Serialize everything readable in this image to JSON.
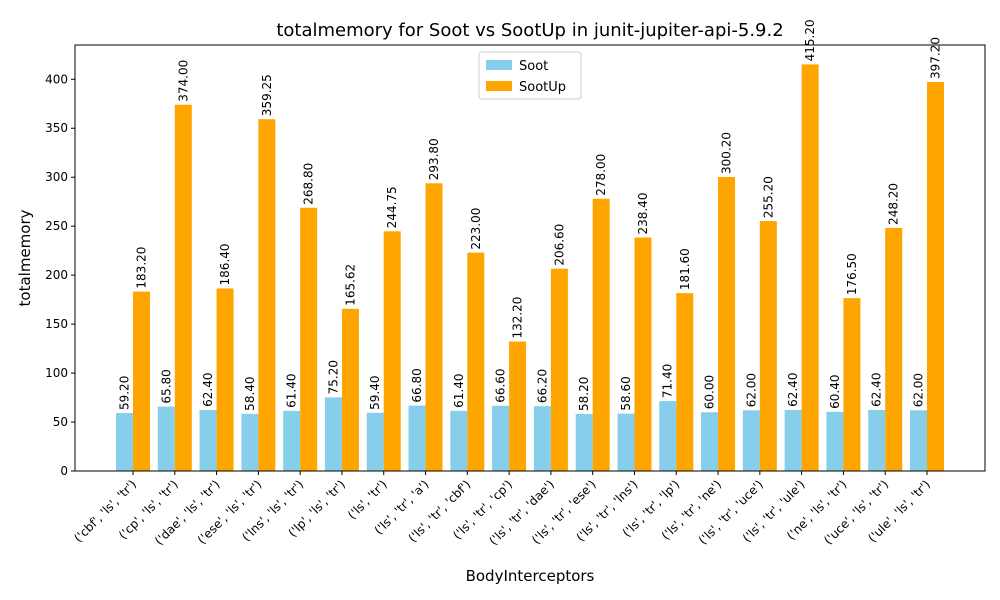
{
  "chart_data": {
    "type": "bar",
    "title": "totalmemory for Soot vs SootUp in junit-jupiter-api-5.9.2",
    "xlabel": "BodyInterceptors",
    "ylabel": "totalmemory",
    "ylim": [
      0,
      435
    ],
    "yticks": [
      0,
      50,
      100,
      150,
      200,
      250,
      300,
      350,
      400
    ],
    "legend_position": "top-center",
    "categories": [
      "('cbf', 'ls', 'tr')",
      "('cp', 'ls', 'tr')",
      "('dae', 'ls', 'tr')",
      "('ese', 'ls', 'tr')",
      "('lns', 'ls', 'tr')",
      "('lp', 'ls', 'tr')",
      "('ls', 'tr')",
      "('ls', 'tr', 'a')",
      "('ls', 'tr', 'cbf')",
      "('ls', 'tr', 'cp')",
      "('ls', 'tr', 'dae')",
      "('ls', 'tr', 'ese')",
      "('ls', 'tr', 'lns')",
      "('ls', 'tr', 'lp')",
      "('ls', 'tr', 'ne')",
      "('ls', 'tr', 'uce')",
      "('ls', 'tr', 'ule')",
      "('ne', 'ls', 'tr')",
      "('uce', 'ls', 'tr')",
      "('ule', 'ls', 'tr')"
    ],
    "series": [
      {
        "name": "Soot",
        "color": "#87ceeb",
        "values": [
          59.2,
          65.8,
          62.4,
          58.4,
          61.4,
          75.2,
          59.4,
          66.8,
          61.4,
          66.6,
          66.2,
          58.2,
          58.6,
          71.4,
          60.0,
          62.0,
          62.4,
          60.4,
          62.4,
          62.0
        ],
        "labels": [
          "59.20",
          "65.80",
          "62.40",
          "58.40",
          "61.40",
          "75.20",
          "59.40",
          "66.80",
          "61.40",
          "66.60",
          "66.20",
          "58.20",
          "58.60",
          "71.40",
          "60.00",
          "62.00",
          "62.40",
          "60.40",
          "62.40",
          "62.00"
        ]
      },
      {
        "name": "SootUp",
        "color": "#ffa500",
        "values": [
          183.2,
          374.0,
          186.4,
          359.25,
          268.8,
          165.62,
          244.75,
          293.8,
          223.0,
          132.2,
          206.6,
          278.0,
          238.4,
          181.6,
          300.2,
          255.2,
          415.2,
          176.5,
          248.2,
          397.2
        ],
        "labels": [
          "183.20",
          "374.00",
          "186.40",
          "359.25",
          "268.80",
          "165.62",
          "244.75",
          "293.80",
          "223.00",
          "132.20",
          "206.60",
          "278.00",
          "238.40",
          "181.60",
          "300.20",
          "255.20",
          "415.20",
          "176.50",
          "248.20",
          "397.20"
        ]
      }
    ]
  }
}
